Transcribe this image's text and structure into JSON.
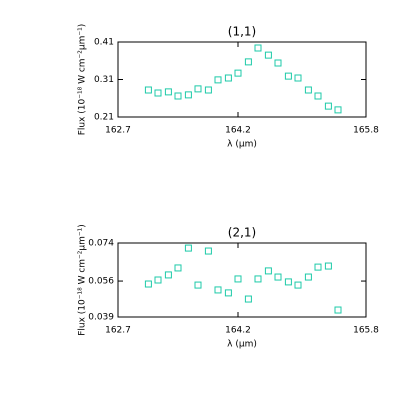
{
  "chart_data": [
    {
      "type": "line",
      "title": "(1,1)",
      "xlabel": "λ (μm)",
      "ylabel": "Flux (10⁻¹⁸ W cm⁻²μm⁻¹)",
      "xlim": [
        162.7,
        165.8
      ],
      "xticks": [
        162.7,
        164.2,
        165.8
      ],
      "ylim": [
        0.21,
        0.41
      ],
      "yticks": [
        0.21,
        0.31,
        0.41
      ],
      "x": [
        163.08,
        163.2,
        163.33,
        163.45,
        163.58,
        163.7,
        163.83,
        163.95,
        164.08,
        164.2,
        164.33,
        164.45,
        164.58,
        164.7,
        164.83,
        164.95,
        165.08,
        165.2,
        165.33,
        165.45
      ],
      "series": [
        {
          "name": "(1,1)",
          "color": "#1ccaa8",
          "values": [
            0.282,
            0.274,
            0.277,
            0.266,
            0.269,
            0.285,
            0.282,
            0.309,
            0.314,
            0.327,
            0.357,
            0.394,
            0.375,
            0.354,
            0.319,
            0.314,
            0.282,
            0.266,
            0.239,
            0.229
          ]
        }
      ]
    },
    {
      "type": "line",
      "title": "(2,1)",
      "xlabel": "λ (μm)",
      "ylabel": "Flux (10⁻¹⁸ W cm⁻²μm⁻¹)",
      "xlim": [
        162.7,
        165.8
      ],
      "xticks": [
        162.7,
        164.2,
        165.8
      ],
      "ylim": [
        0.039,
        0.074
      ],
      "yticks": [
        0.039,
        0.056,
        0.074
      ],
      "x": [
        163.08,
        163.2,
        163.33,
        163.45,
        163.58,
        163.7,
        163.83,
        163.95,
        164.08,
        164.2,
        164.33,
        164.45,
        164.58,
        164.7,
        164.83,
        164.95,
        165.08,
        165.2,
        165.33,
        165.45
      ],
      "series": [
        {
          "name": "(2,1)",
          "color": "#1ccaa8",
          "values": [
            0.0546,
            0.0565,
            0.0589,
            0.0622,
            0.0716,
            0.0541,
            0.0702,
            0.0518,
            0.0504,
            0.057,
            0.0475,
            0.057,
            0.0608,
            0.0579,
            0.0556,
            0.0541,
            0.0579,
            0.0626,
            0.0631,
            0.0423
          ]
        }
      ]
    }
  ]
}
